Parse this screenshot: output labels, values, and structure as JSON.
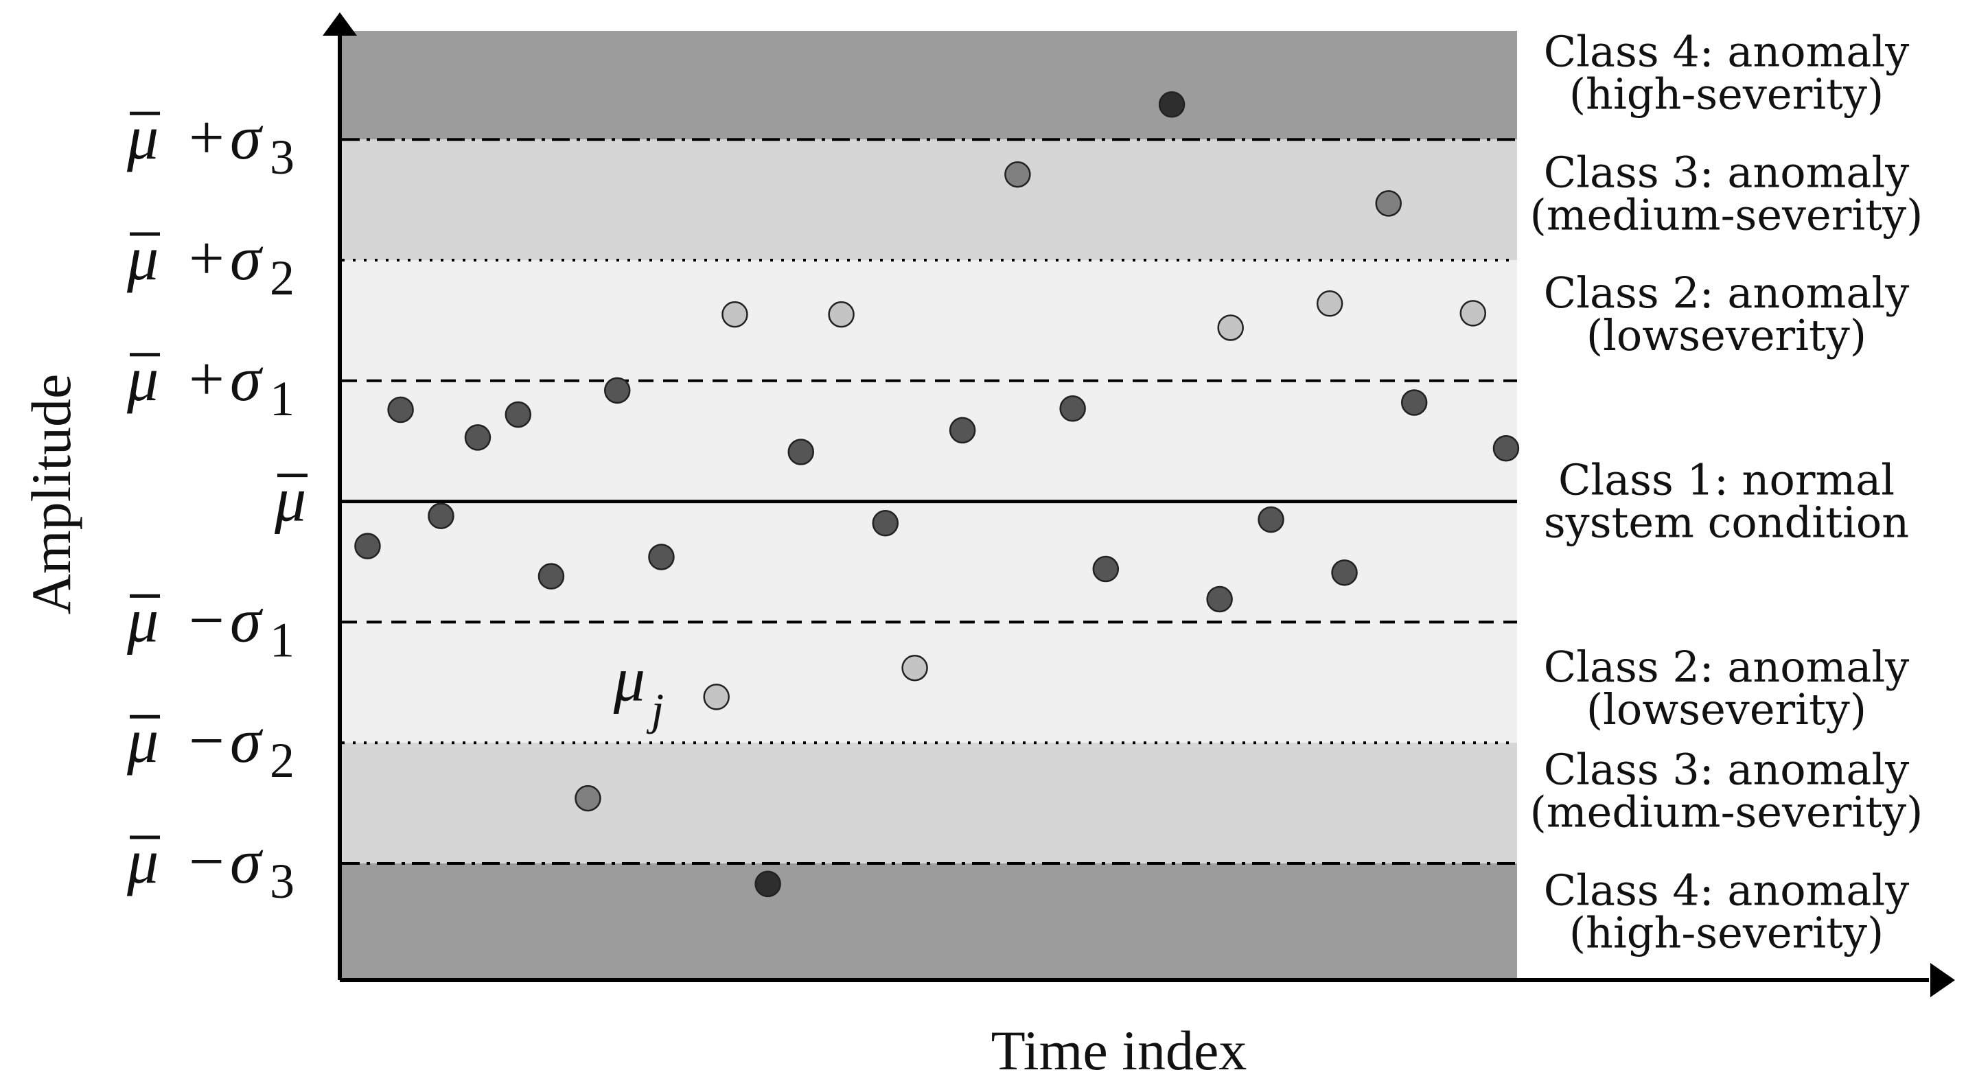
{
  "axes": {
    "x_title": "Time index",
    "y_title": "Amplitude"
  },
  "y_ticks": [
    {
      "id": "plus3",
      "level": 3,
      "op": "+",
      "sub": "3"
    },
    {
      "id": "plus2",
      "level": 2,
      "op": "+",
      "sub": "2"
    },
    {
      "id": "plus1",
      "level": 1,
      "op": "+",
      "sub": "1"
    },
    {
      "id": "mean",
      "level": 0,
      "op": "",
      "sub": ""
    },
    {
      "id": "minus1",
      "level": -1,
      "op": "−",
      "sub": "1"
    },
    {
      "id": "minus2",
      "level": -2,
      "op": "−",
      "sub": "2"
    },
    {
      "id": "minus3",
      "level": -3,
      "op": "−",
      "sub": "3"
    }
  ],
  "tick_symbols": {
    "mu": "μ",
    "sigma": "σ"
  },
  "point_annotation": {
    "symbol": "μ",
    "subscript": "j"
  },
  "class_labels": [
    {
      "id": "upper-class-4",
      "level": 3.55,
      "lines": [
        "Class 4: anomaly",
        "(high-severity)"
      ]
    },
    {
      "id": "upper-class-3",
      "level": 2.55,
      "lines": [
        "Class 3: anomaly",
        "(medium-severity)"
      ]
    },
    {
      "id": "upper-class-2",
      "level": 1.55,
      "lines": [
        "Class 2: anomaly",
        "(lowseverity)"
      ]
    },
    {
      "id": "class-1",
      "level": 0.0,
      "lines": [
        "Class 1: normal",
        "system condition"
      ]
    },
    {
      "id": "lower-class-2",
      "level": -1.55,
      "lines": [
        "Class 2: anomaly",
        "(lowseverity)"
      ]
    },
    {
      "id": "lower-class-3",
      "level": -2.4,
      "lines": [
        "Class 3: anomaly",
        "(medium-severity)"
      ]
    },
    {
      "id": "lower-class-4",
      "level": -3.4,
      "lines": [
        "Class 4: anomaly",
        "(high-severity)"
      ]
    }
  ],
  "bands": [
    {
      "id": "upper-high",
      "from": 3,
      "to": 3.9,
      "color": "#9c9c9c"
    },
    {
      "id": "upper-medium",
      "from": 2,
      "to": 3,
      "color": "#d6d6d6"
    },
    {
      "id": "low",
      "from": -2,
      "to": 2,
      "color": "#f0f0f0"
    },
    {
      "id": "lower-medium",
      "from": -3,
      "to": -2,
      "color": "#d6d6d6"
    },
    {
      "id": "lower-high",
      "from": -3.95,
      "to": -3,
      "color": "#9c9c9c"
    }
  ],
  "chart_data": {
    "type": "scatter",
    "x_range": [
      0,
      32
    ],
    "y_range": [
      -3.95,
      3.9
    ],
    "points": [
      {
        "x": 0.7,
        "y": -0.37,
        "cls": 1
      },
      {
        "x": 1.6,
        "y": 0.76,
        "cls": 1
      },
      {
        "x": 2.7,
        "y": -0.12,
        "cls": 1
      },
      {
        "x": 3.7,
        "y": 0.53,
        "cls": 1
      },
      {
        "x": 4.8,
        "y": 0.72,
        "cls": 1
      },
      {
        "x": 5.7,
        "y": -0.62,
        "cls": 1
      },
      {
        "x": 6.7,
        "y": -2.46,
        "cls": 3
      },
      {
        "x": 7.5,
        "y": 0.92,
        "cls": 1
      },
      {
        "x": 8.7,
        "y": -0.46,
        "cls": 1
      },
      {
        "x": 10.2,
        "y": -1.62,
        "cls": 2
      },
      {
        "x": 10.7,
        "y": 1.55,
        "cls": 2
      },
      {
        "x": 11.6,
        "y": -3.17,
        "cls": 4
      },
      {
        "x": 12.5,
        "y": 0.41,
        "cls": 1
      },
      {
        "x": 13.6,
        "y": 1.55,
        "cls": 2
      },
      {
        "x": 14.8,
        "y": -0.18,
        "cls": 1
      },
      {
        "x": 15.6,
        "y": -1.38,
        "cls": 2
      },
      {
        "x": 16.9,
        "y": 0.59,
        "cls": 1
      },
      {
        "x": 18.4,
        "y": 2.71,
        "cls": 3
      },
      {
        "x": 19.9,
        "y": 0.77,
        "cls": 1
      },
      {
        "x": 20.8,
        "y": -0.56,
        "cls": 1
      },
      {
        "x": 22.6,
        "y": 3.29,
        "cls": 4
      },
      {
        "x": 23.9,
        "y": -0.81,
        "cls": 1
      },
      {
        "x": 24.2,
        "y": 1.44,
        "cls": 2
      },
      {
        "x": 25.3,
        "y": -0.15,
        "cls": 1
      },
      {
        "x": 26.9,
        "y": 1.64,
        "cls": 2
      },
      {
        "x": 27.3,
        "y": -0.59,
        "cls": 1
      },
      {
        "x": 28.5,
        "y": 2.47,
        "cls": 3
      },
      {
        "x": 29.2,
        "y": 0.82,
        "cls": 1
      },
      {
        "x": 30.8,
        "y": 1.56,
        "cls": 2
      },
      {
        "x": 31.7,
        "y": 0.44,
        "cls": 1
      }
    ],
    "marker_colors": {
      "1": "#555555",
      "2": "#c4c4c4",
      "3": "#808080",
      "4": "#2e2e2e"
    },
    "annotated_point_index": 9
  }
}
